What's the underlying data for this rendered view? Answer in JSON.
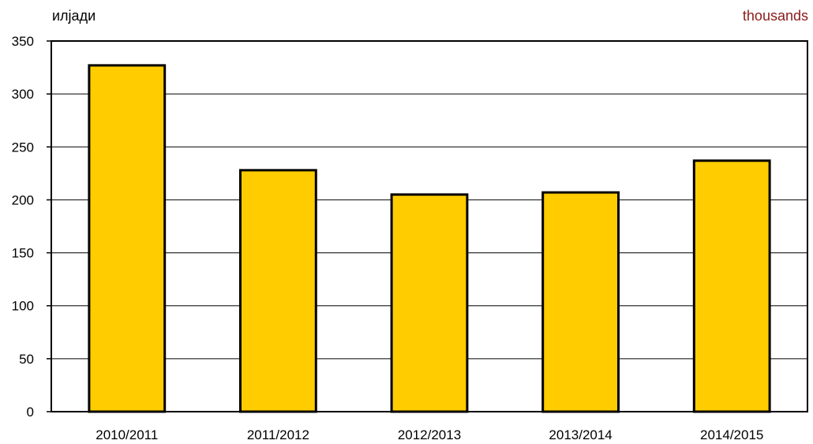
{
  "chart_data": {
    "type": "bar",
    "unit_label_left": "илјади",
    "unit_label_right": "thousands",
    "categories": [
      "2010/2011",
      "2011/2012",
      "2012/2013",
      "2013/2014",
      "2014/2015"
    ],
    "values": [
      327,
      228,
      205,
      207,
      237
    ],
    "ylim": [
      0,
      350
    ],
    "yticks": [
      0,
      50,
      100,
      150,
      200,
      250,
      300,
      350
    ],
    "grid": true,
    "legend": "none",
    "bar_color": "#FFCC00",
    "bar_border_color": "#000000",
    "right_label_color": "#8B1A1A"
  }
}
